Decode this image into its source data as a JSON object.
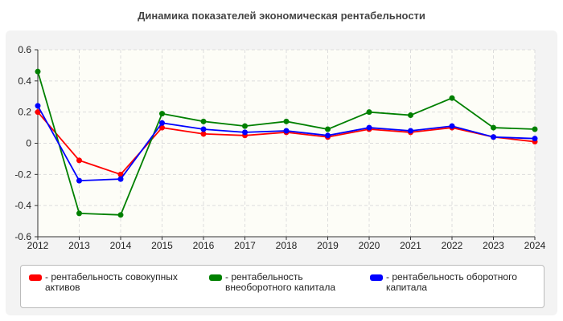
{
  "chart_data": {
    "type": "line",
    "title": "Динамика показателей экономическая рентабельности",
    "x": [
      "2012",
      "2013",
      "2014",
      "2015",
      "2016",
      "2017",
      "2018",
      "2019",
      "2020",
      "2021",
      "2022",
      "2023",
      "2024"
    ],
    "ylim": [
      -0.6,
      0.6
    ],
    "yticks": [
      "0.6",
      "0.4",
      "0.2",
      "0",
      "-0.2",
      "-0.4",
      "-0.6"
    ],
    "grid": true,
    "legend_position": "bottom",
    "series": [
      {
        "name": "- рентабельность совокупных активов",
        "color": "#ff0000",
        "values": [
          0.2,
          -0.11,
          -0.2,
          0.1,
          0.06,
          0.05,
          0.07,
          0.04,
          0.09,
          0.07,
          0.1,
          0.04,
          0.01
        ]
      },
      {
        "name": "- рентабельность внеоборотного капитала",
        "color": "#008000",
        "values": [
          0.46,
          -0.45,
          -0.46,
          0.19,
          0.14,
          0.11,
          0.14,
          0.09,
          0.2,
          0.18,
          0.29,
          0.1,
          0.09
        ]
      },
      {
        "name": "- рентабельность оборотного капитала",
        "color": "#0000ff",
        "values": [
          0.24,
          -0.24,
          -0.23,
          0.13,
          0.09,
          0.07,
          0.08,
          0.05,
          0.1,
          0.08,
          0.11,
          0.04,
          0.03
        ]
      }
    ]
  }
}
